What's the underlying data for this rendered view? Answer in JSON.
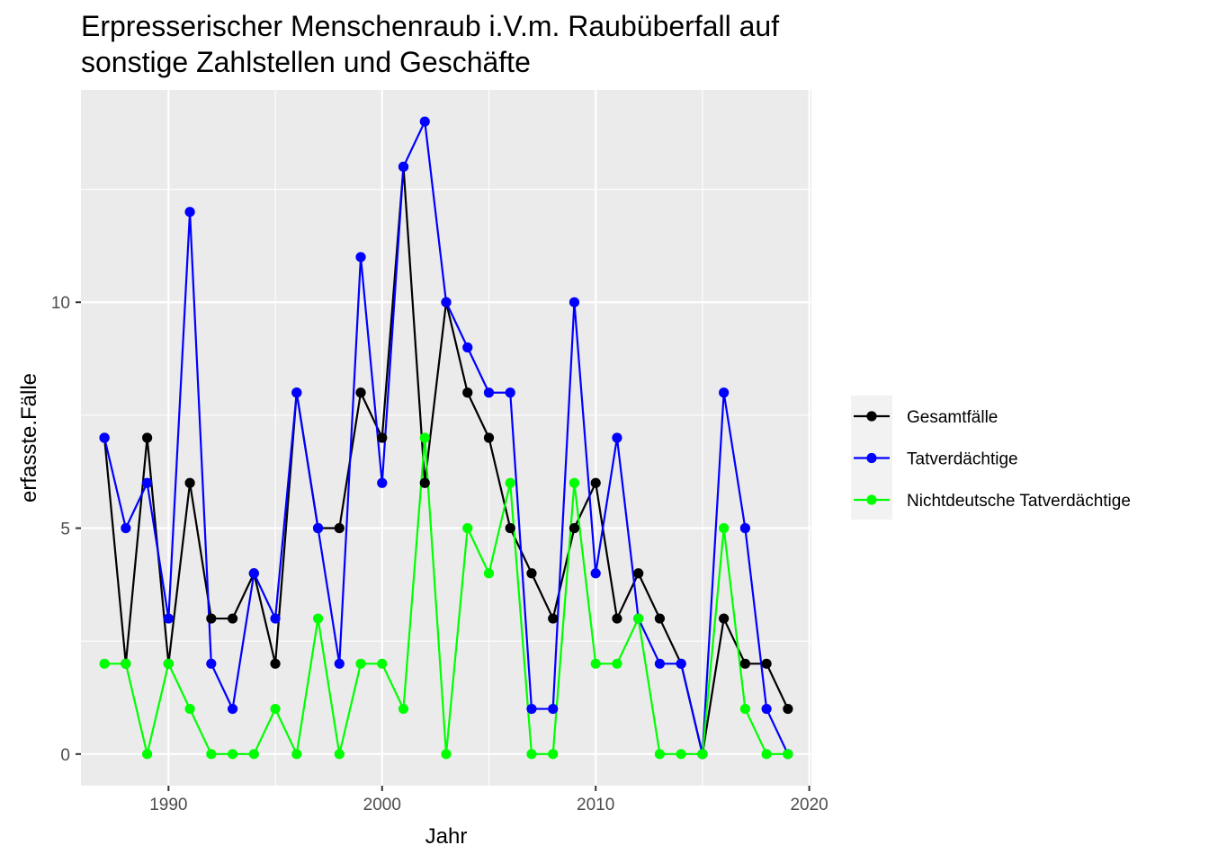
{
  "chart_data": {
    "type": "line",
    "title_lines": [
      "Erpresserischer Menschenraub i.V.m. Raubüberfall auf",
      "sonstige Zahlstellen und Geschäfte"
    ],
    "xlabel": "Jahr",
    "ylabel": "erfasste.Fälle",
    "x_ticks": [
      1990,
      2000,
      2010,
      2020
    ],
    "y_ticks": [
      0,
      5,
      10
    ],
    "xlim": [
      1985.9,
      2020.1
    ],
    "ylim": [
      -0.7,
      14.7
    ],
    "grid": true,
    "legend_position": "right",
    "x": [
      1987,
      1988,
      1989,
      1990,
      1991,
      1992,
      1993,
      1994,
      1995,
      1996,
      1997,
      1998,
      1999,
      2000,
      2001,
      2002,
      2003,
      2004,
      2005,
      2006,
      2007,
      2008,
      2009,
      2010,
      2011,
      2012,
      2013,
      2014,
      2015,
      2016,
      2017,
      2018,
      2019
    ],
    "series": [
      {
        "name": "Gesamtfälle",
        "color": "#000000",
        "values": [
          7,
          2,
          7,
          2,
          6,
          3,
          3,
          4,
          2,
          8,
          5,
          5,
          8,
          7,
          13,
          6,
          10,
          8,
          7,
          5,
          4,
          3,
          5,
          6,
          3,
          4,
          3,
          2,
          0,
          3,
          2,
          2,
          1
        ]
      },
      {
        "name": "Tatverdächtige",
        "color": "#0000ff",
        "values": [
          7,
          5,
          6,
          3,
          12,
          2,
          1,
          4,
          3,
          8,
          5,
          2,
          11,
          6,
          13,
          14,
          10,
          9,
          8,
          8,
          1,
          1,
          10,
          4,
          7,
          3,
          2,
          2,
          0,
          8,
          5,
          1,
          0
        ]
      },
      {
        "name": "Nichtdeutsche Tatverdächtige",
        "color": "#00ff00",
        "values": [
          2,
          2,
          0,
          2,
          1,
          0,
          0,
          0,
          1,
          0,
          3,
          0,
          2,
          2,
          1,
          7,
          0,
          5,
          4,
          6,
          0,
          0,
          6,
          2,
          2,
          3,
          0,
          0,
          0,
          5,
          1,
          0,
          0
        ]
      }
    ]
  }
}
